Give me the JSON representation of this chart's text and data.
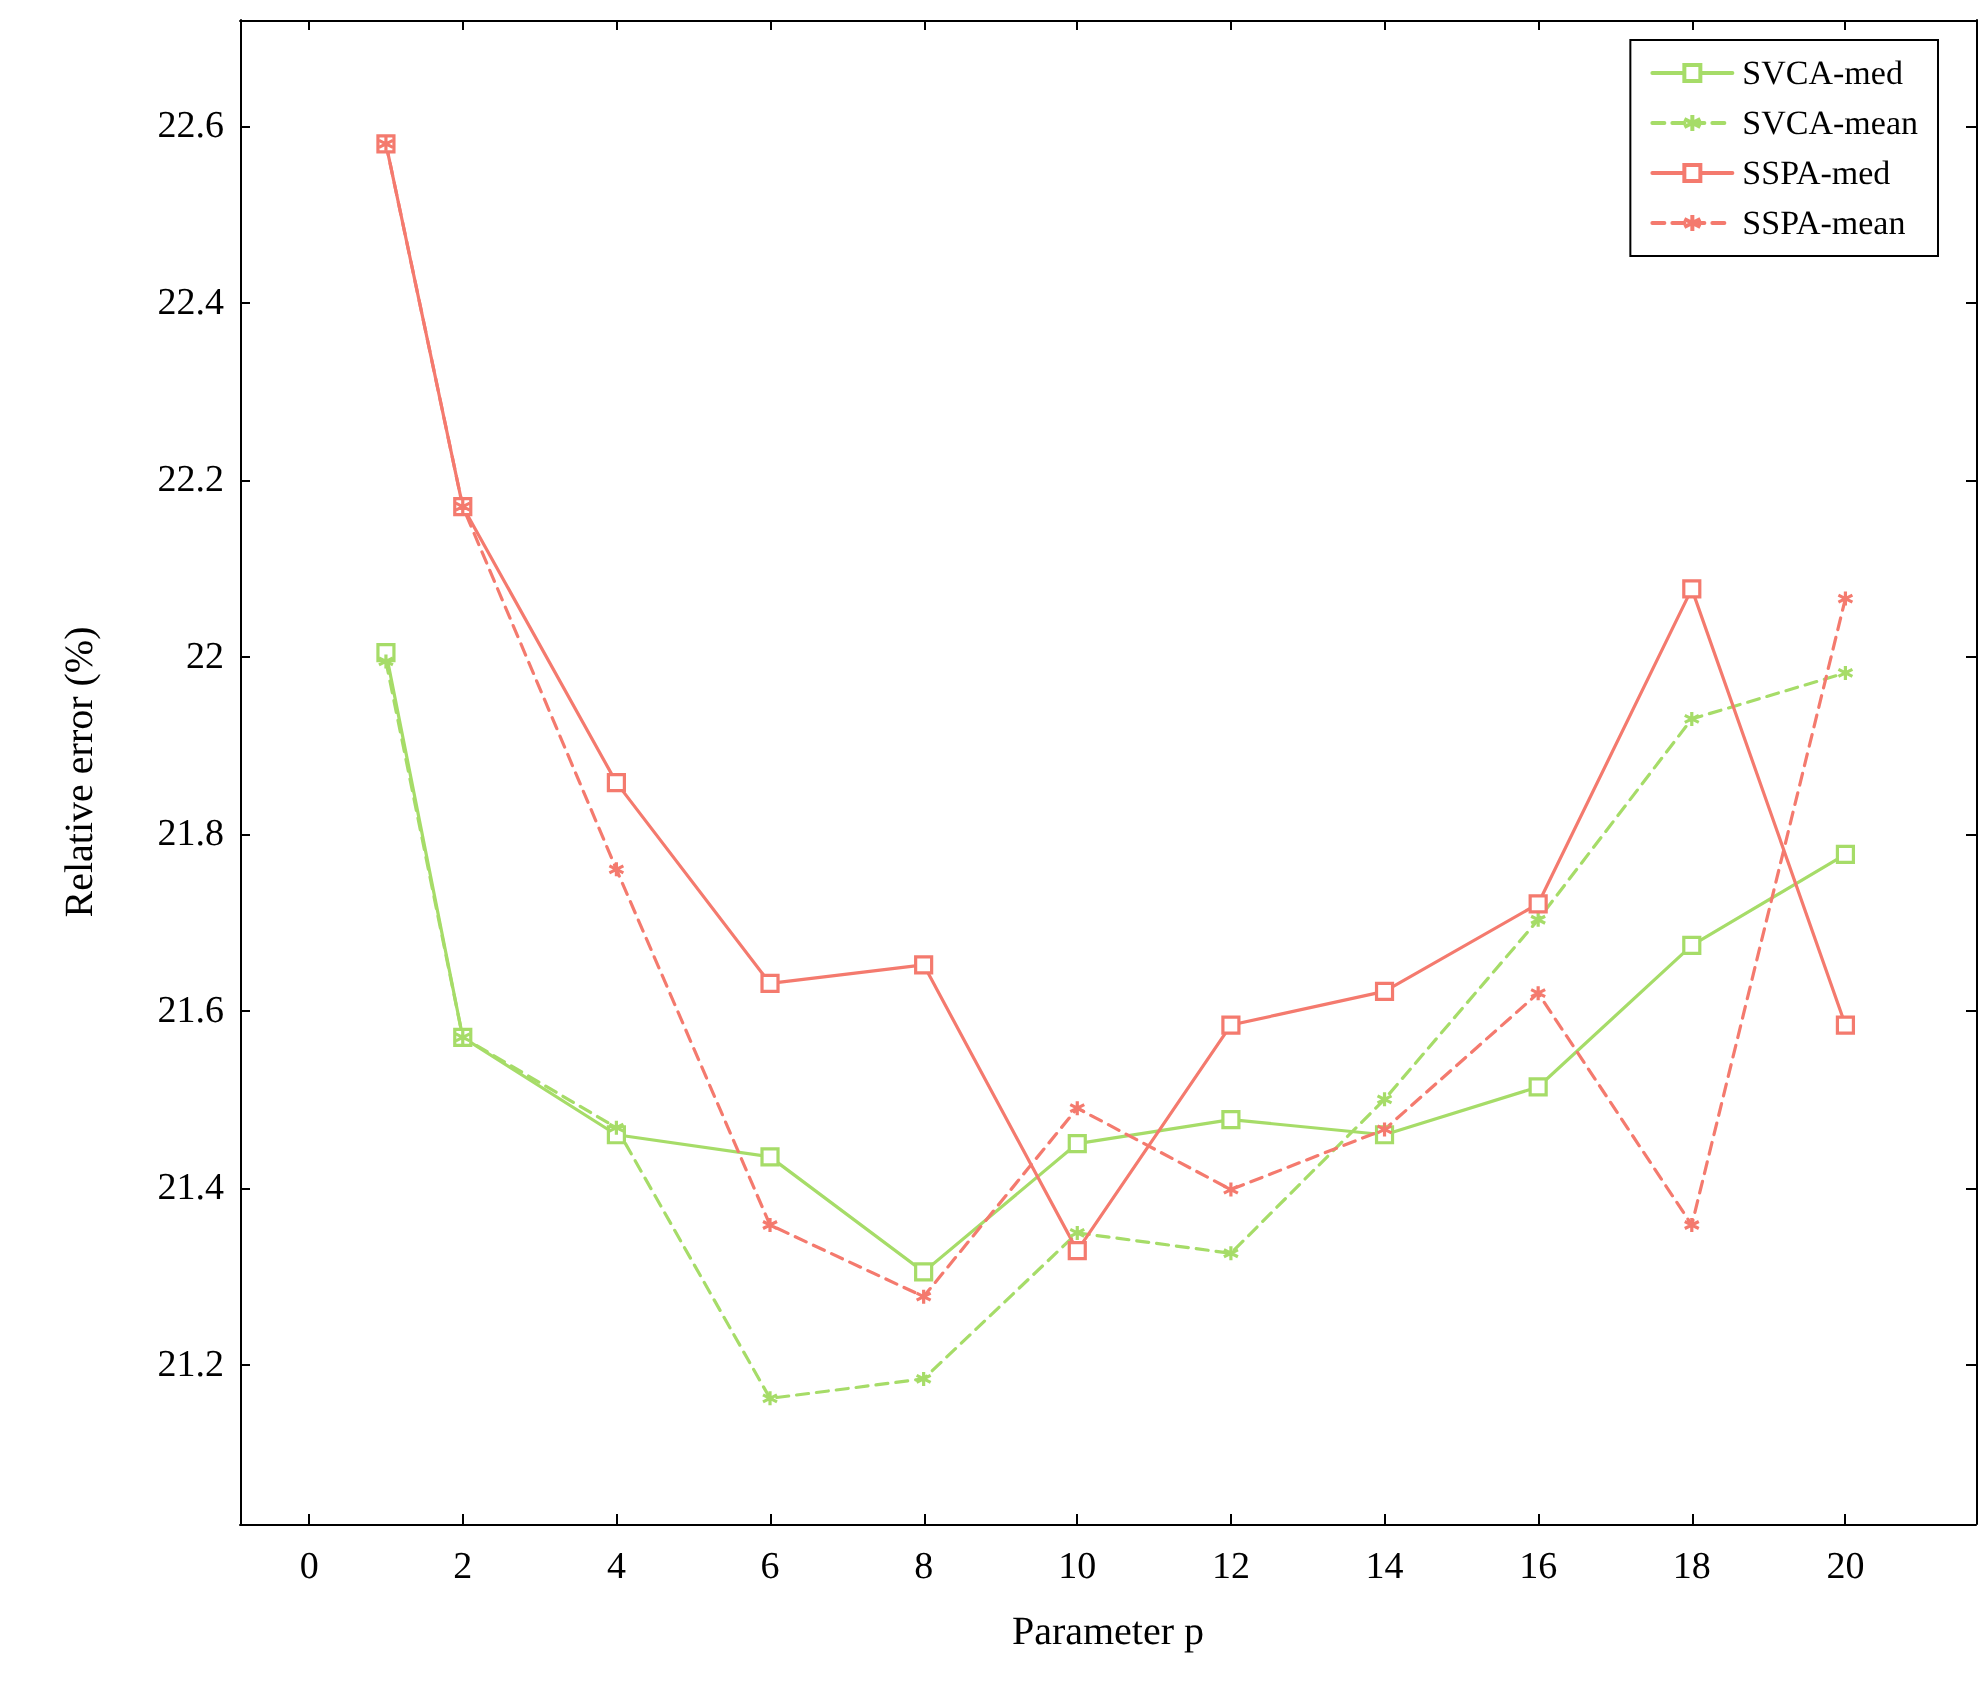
{
  "chart_data": {
    "type": "line",
    "xlabel": "Parameter p",
    "ylabel": "Relative error (%)",
    "x": [
      1,
      2,
      4,
      6,
      8,
      10,
      12,
      14,
      16,
      18,
      20
    ],
    "xlim": [
      -0.9,
      21.7
    ],
    "xticks": [
      0,
      2,
      4,
      6,
      8,
      10,
      12,
      14,
      16,
      18,
      20
    ],
    "ylim": [
      21.02,
      22.72
    ],
    "yticks": [
      21.2,
      21.4,
      21.6,
      21.8,
      22,
      22.2,
      22.4,
      22.6
    ],
    "grid": false,
    "legend": "top right",
    "series": [
      {
        "name": "SVCA-med",
        "color": "#a6dc68",
        "marker": "square",
        "line_style": "solid",
        "values": [
          22.005,
          21.57,
          21.46,
          21.435,
          21.305,
          21.45,
          21.477,
          21.46,
          21.514,
          21.674,
          21.777
        ]
      },
      {
        "name": "SVCA-mean",
        "color": "#a6dc68",
        "marker": "cross",
        "line_style": "dashed",
        "values": [
          21.995,
          21.57,
          21.468,
          21.162,
          21.184,
          21.349,
          21.326,
          21.5,
          21.703,
          21.93,
          21.982
        ]
      },
      {
        "name": "SSPA-med",
        "color": "#f47a6e",
        "marker": "square",
        "line_style": "solid",
        "values": [
          22.58,
          22.17,
          21.858,
          21.631,
          21.652,
          21.329,
          21.584,
          21.622,
          21.721,
          22.077,
          21.584
        ]
      },
      {
        "name": "SSPA-mean",
        "color": "#f47a6e",
        "marker": "cross",
        "line_style": "dashed",
        "values": [
          22.58,
          22.17,
          21.76,
          21.358,
          21.277,
          21.49,
          21.398,
          21.466,
          21.62,
          21.358,
          22.066
        ]
      }
    ]
  }
}
